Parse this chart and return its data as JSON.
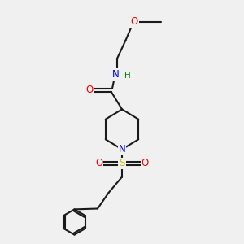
{
  "bg_color": "#f0f0f0",
  "bond_color": "#1a1a1a",
  "bond_width": 1.5,
  "atom_colors": {
    "O": "#ff0000",
    "N": "#0000ee",
    "S": "#ccbb00",
    "C": "#1a1a1a",
    "H": "#008800"
  },
  "font_size": 8.5,
  "figsize": [
    3.0,
    3.0
  ],
  "dpi": 100,
  "xlim": [
    0,
    10
  ],
  "ylim": [
    0,
    10
  ]
}
